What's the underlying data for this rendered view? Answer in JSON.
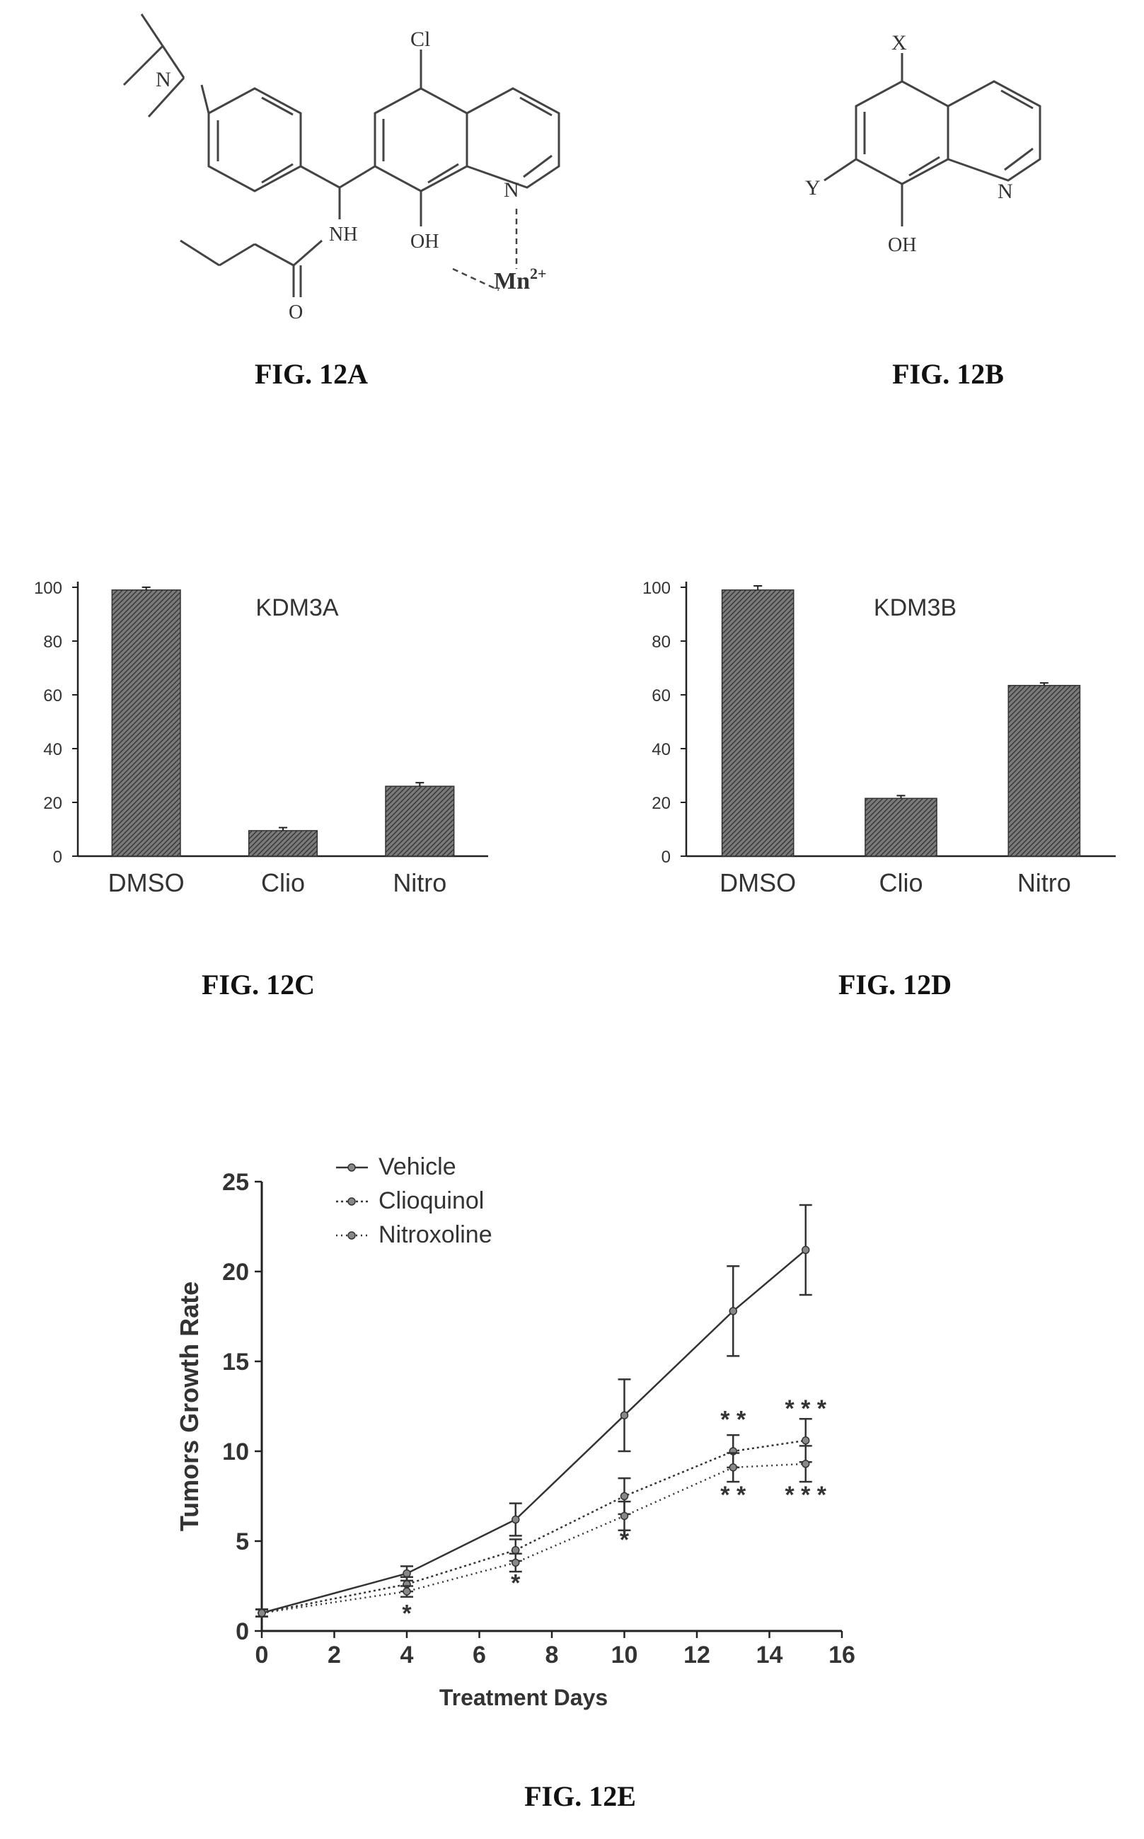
{
  "figures": {
    "a": {
      "label": "FIG. 12A",
      "atoms": {
        "n_amine": "N",
        "cl": "Cl",
        "nh": "NH",
        "o": "O",
        "oh": "OH",
        "n_ring": "N",
        "metal": "Mn",
        "charge": "2+"
      }
    },
    "b": {
      "label": "FIG. 12B",
      "atoms": {
        "x": "X",
        "y": "Y",
        "n_ring": "N",
        "oh": "OH"
      }
    },
    "c": {
      "label": "FIG. 12C"
    },
    "d": {
      "label": "FIG. 12D"
    },
    "e": {
      "label": "FIG. 12E"
    }
  },
  "colors": {
    "bar": "#444444",
    "line": "#333333",
    "axis": "#222222"
  },
  "chart_data": [
    {
      "id": "kdm3a",
      "type": "bar",
      "title": "KDM3A",
      "categories": [
        "DMSO",
        "Clio",
        "Nitro"
      ],
      "values": [
        99,
        9.5,
        26
      ],
      "errors": [
        0.5,
        0.6,
        0.8
      ],
      "ylim": [
        0,
        100
      ],
      "yticks": [
        0,
        20,
        40,
        60,
        80,
        100
      ],
      "xlabel": "",
      "ylabel": ""
    },
    {
      "id": "kdm3b",
      "type": "bar",
      "title": "KDM3B",
      "categories": [
        "DMSO",
        "Clio",
        "Nitro"
      ],
      "values": [
        99,
        21.5,
        63.5
      ],
      "errors": [
        1,
        0.5,
        0.4
      ],
      "ylim": [
        0,
        100
      ],
      "yticks": [
        0,
        20,
        40,
        60,
        80,
        100
      ],
      "xlabel": "",
      "ylabel": ""
    },
    {
      "id": "growth",
      "type": "line",
      "title": "",
      "xlabel": "Treatment Days",
      "ylabel": "Tumors Growth Rate",
      "xlim": [
        0,
        16
      ],
      "ylim": [
        0,
        25
      ],
      "xticks": [
        0,
        2,
        4,
        6,
        8,
        10,
        12,
        14,
        16
      ],
      "yticks": [
        0,
        5,
        10,
        15,
        20,
        25
      ],
      "x": [
        0,
        4,
        7,
        10,
        13,
        15
      ],
      "legend_position": "top-left",
      "series": [
        {
          "name": "Vehicle",
          "values": [
            1,
            3.2,
            6.2,
            12,
            17.8,
            21.2
          ],
          "errors": [
            0.2,
            0.4,
            0.9,
            2.0,
            2.5,
            2.5
          ]
        },
        {
          "name": "Clioquinol",
          "values": [
            1,
            2.6,
            4.5,
            7.5,
            10,
            10.6
          ],
          "errors": [
            0.2,
            0.4,
            0.6,
            1.0,
            0.9,
            1.2
          ]
        },
        {
          "name": "Nitroxoline",
          "values": [
            1,
            2.2,
            3.8,
            6.4,
            9.1,
            9.3
          ],
          "errors": [
            0.2,
            0.3,
            0.5,
            0.8,
            0.8,
            1.0
          ]
        }
      ],
      "annotations": [
        {
          "text": "*",
          "x": 4,
          "y": 1.0
        },
        {
          "text": "*",
          "x": 7,
          "y": 2.7
        },
        {
          "text": "*",
          "x": 10,
          "y": 5.1
        },
        {
          "text": "* *",
          "x": 13,
          "y": 11.8
        },
        {
          "text": "* *",
          "x": 13,
          "y": 7.6
        },
        {
          "text": "* * *",
          "x": 15,
          "y": 12.4
        },
        {
          "text": "* * *",
          "x": 15,
          "y": 7.6
        }
      ]
    }
  ]
}
